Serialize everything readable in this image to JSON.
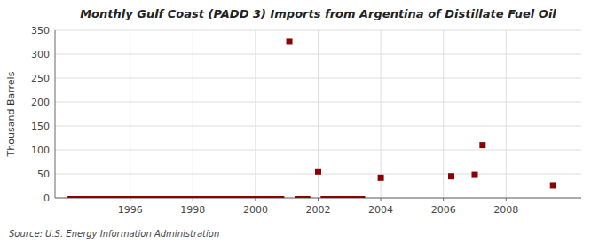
{
  "chart_data": {
    "type": "scatter",
    "title": "Monthly Gulf Coast (PADD 3) Imports from Argentina of Distillate Fuel Oil",
    "y_label": "Thousand Barrels",
    "source": "Source: U.S. Energy Information Administration",
    "xlim": [
      1993.6,
      2010.4
    ],
    "xticks": [
      1996,
      1998,
      2000,
      2002,
      2004,
      2006,
      2008
    ],
    "ylim": [
      0,
      350
    ],
    "yticks": [
      0,
      50,
      100,
      150,
      200,
      250,
      300,
      350
    ],
    "grid": true,
    "series": [
      {
        "type": "scatter",
        "marker": "square",
        "color": "#8b0000",
        "x": [
          2001.08,
          2002.0,
          2004.0,
          2006.25,
          2007.0,
          2007.25,
          2009.5
        ],
        "values": [
          326,
          55,
          42,
          45,
          48,
          110,
          26
        ]
      },
      {
        "type": "line",
        "line_style": "solid",
        "color": "#8b0000",
        "x": [
          1994.0,
          2000.92,
          null,
          2001.25,
          2001.75,
          null,
          2002.08,
          2003.5
        ],
        "values": [
          0,
          0,
          null,
          0,
          0,
          null,
          0,
          0
        ]
      }
    ]
  }
}
